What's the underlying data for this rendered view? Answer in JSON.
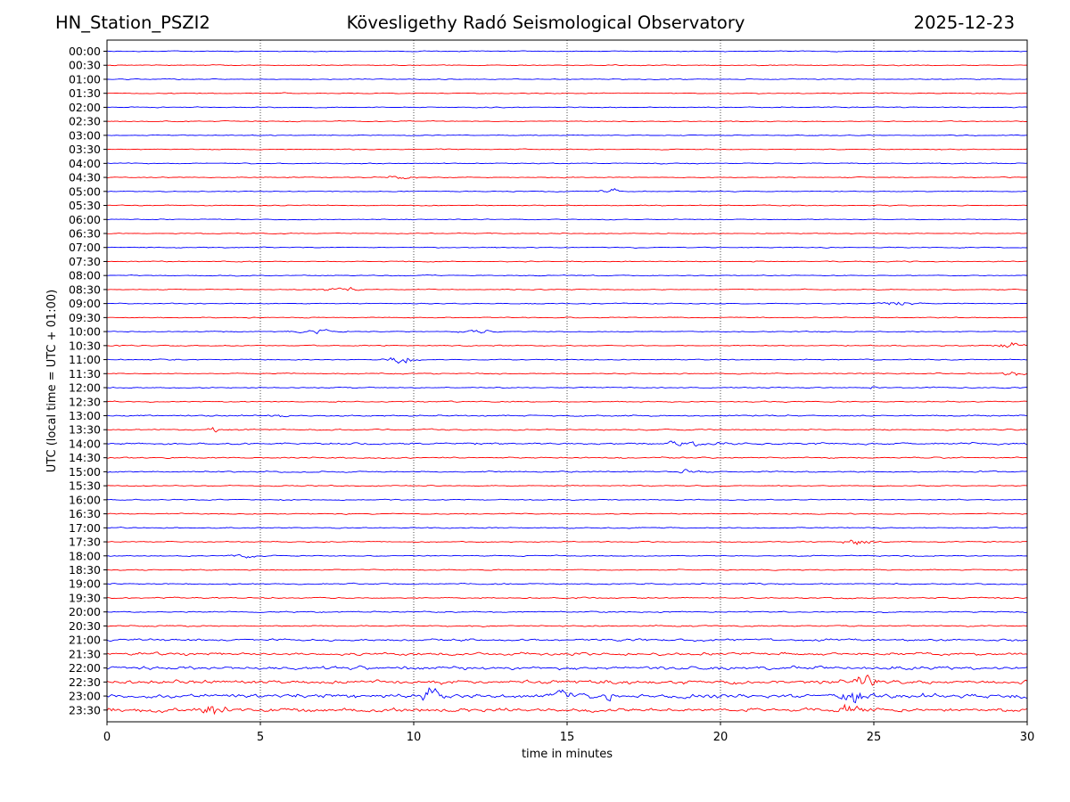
{
  "header": {
    "station": "HN_Station_PSZI2",
    "observatory": "Kövesligethy Radó Seismological Observatory",
    "date": "2025-12-23"
  },
  "chart_data": {
    "type": "line",
    "title": "Kövesligethy Radó Seismological Observatory",
    "xlabel": "time in minutes",
    "ylabel": "UTC (local time = UTC + 01:00)",
    "xlim": [
      0,
      30
    ],
    "xticks": [
      "0",
      "5",
      "10",
      "15",
      "20",
      "25",
      "30"
    ],
    "grid": "vertical dotted lines at each x tick",
    "trace_colors": [
      "#0000ff",
      "#ff0000"
    ],
    "rows": [
      "00:00",
      "00:30",
      "01:00",
      "01:30",
      "02:00",
      "02:30",
      "03:00",
      "03:30",
      "04:00",
      "04:30",
      "05:00",
      "05:30",
      "06:00",
      "06:30",
      "07:00",
      "07:30",
      "08:00",
      "08:30",
      "09:00",
      "09:30",
      "10:00",
      "10:30",
      "11:00",
      "11:30",
      "12:00",
      "12:30",
      "13:00",
      "13:30",
      "14:00",
      "14:30",
      "15:00",
      "15:30",
      "16:00",
      "16:30",
      "17:00",
      "17:30",
      "18:00",
      "18:30",
      "19:00",
      "19:30",
      "20:00",
      "20:30",
      "21:00",
      "21:30",
      "22:00",
      "22:30",
      "23:00",
      "23:30"
    ],
    "noise_level": [
      1,
      1,
      1,
      1,
      1,
      1,
      1,
      1,
      1,
      1,
      1,
      1,
      1,
      1,
      1,
      1,
      1,
      1,
      1,
      1,
      1,
      1.2,
      1.2,
      1.2,
      1.2,
      1.2,
      1.5,
      1.5,
      2,
      1.5,
      1.5,
      1.2,
      1.2,
      1.2,
      1.2,
      1.2,
      1.2,
      1.2,
      1.5,
      1.5,
      1.5,
      1.5,
      2.5,
      3,
      3.5,
      4,
      4.5,
      4
    ],
    "events": [
      {
        "row": "04:30",
        "minute": 9.6,
        "amp": 2.5,
        "width": 0.4
      },
      {
        "row": "05:00",
        "minute": 16.4,
        "amp": 2.5,
        "width": 0.3
      },
      {
        "row": "08:30",
        "minute": 7.6,
        "amp": 2.5,
        "width": 0.5
      },
      {
        "row": "09:00",
        "minute": 25.8,
        "amp": 3.5,
        "width": 0.5
      },
      {
        "row": "10:00",
        "minute": 6.8,
        "amp": 2,
        "width": 0.6
      },
      {
        "row": "10:00",
        "minute": 12,
        "amp": 2,
        "width": 0.6
      },
      {
        "row": "10:30",
        "minute": 29.5,
        "amp": 3,
        "width": 0.5
      },
      {
        "row": "11:00",
        "minute": 9.6,
        "amp": 3.5,
        "width": 0.4
      },
      {
        "row": "11:30",
        "minute": 29.6,
        "amp": 2.5,
        "width": 0.4
      },
      {
        "row": "12:00",
        "minute": 25,
        "amp": 4,
        "width": 0.08
      },
      {
        "row": "13:00",
        "minute": 5.6,
        "amp": 2.5,
        "width": 0.2
      },
      {
        "row": "13:30",
        "minute": 3.5,
        "amp": 3,
        "width": 0.15
      },
      {
        "row": "14:00",
        "minute": 19,
        "amp": 2.5,
        "width": 0.8
      },
      {
        "row": "15:00",
        "minute": 19,
        "amp": 3,
        "width": 0.4
      },
      {
        "row": "17:30",
        "minute": 24.5,
        "amp": 2.5,
        "width": 0.5
      },
      {
        "row": "18:00",
        "minute": 4.5,
        "amp": 2,
        "width": 0.4
      },
      {
        "row": "22:30",
        "minute": 24.8,
        "amp": 5,
        "width": 0.4
      },
      {
        "row": "23:00",
        "minute": 10.5,
        "amp": 8,
        "width": 0.3
      },
      {
        "row": "23:00",
        "minute": 14.9,
        "amp": 6,
        "width": 0.3
      },
      {
        "row": "23:00",
        "minute": 16.4,
        "amp": 5,
        "width": 0.2
      },
      {
        "row": "23:00",
        "minute": 24.4,
        "amp": 6,
        "width": 0.4
      },
      {
        "row": "23:30",
        "minute": 3.5,
        "amp": 5,
        "width": 0.4
      },
      {
        "row": "23:30",
        "minute": 24.3,
        "amp": 7,
        "width": 0.4
      }
    ]
  }
}
